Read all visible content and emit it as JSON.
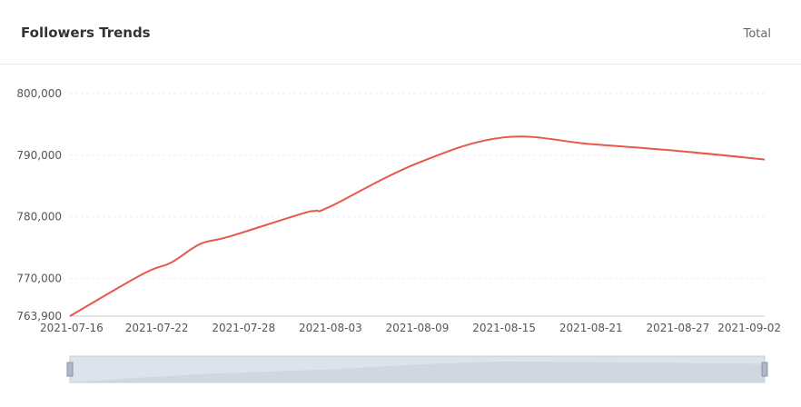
{
  "header": {
    "title": "Followers Trends",
    "filter_label": "Total"
  },
  "colors": {
    "line": "#e8574a",
    "grid": "#eeeeee",
    "axis": "#cccccc",
    "slider_fill": "#dde3ec",
    "slider_area": "#c9d1dc"
  },
  "chart_data": {
    "type": "line",
    "title": "Followers Trends",
    "xlabel": "",
    "ylabel": "",
    "ylim": [
      763900,
      800000
    ],
    "y_ticks": [
      763900,
      770000,
      780000,
      790000,
      800000
    ],
    "y_tick_labels": [
      "763,900",
      "770,000",
      "780,000",
      "790,000",
      "800,000"
    ],
    "x_tick_labels": [
      "2021-07-16",
      "2021-07-22",
      "2021-07-28",
      "2021-08-03",
      "2021-08-09",
      "2021-08-15",
      "2021-08-21",
      "2021-08-27",
      "2021-09-02"
    ],
    "grid": true,
    "series": [
      {
        "values": [
          [
            "2021-07-16",
            763900
          ],
          [
            "2021-07-21",
            770700
          ],
          [
            "2021-07-23",
            772600
          ],
          [
            "2021-07-25",
            775600
          ],
          [
            "2021-07-27",
            776800
          ],
          [
            "2021-08-01",
            780500
          ],
          [
            "2021-08-02",
            781000
          ],
          [
            "2021-08-03",
            781700
          ],
          [
            "2021-08-09",
            788700
          ],
          [
            "2021-08-15",
            792900
          ],
          [
            "2021-08-21",
            791800
          ],
          [
            "2021-08-27",
            790700
          ],
          [
            "2021-09-02",
            789300
          ]
        ]
      }
    ]
  }
}
